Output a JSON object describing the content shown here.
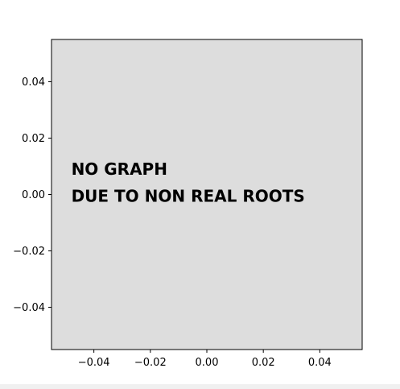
{
  "chart_data": {
    "type": "line",
    "title": "",
    "xlabel": "",
    "ylabel": "",
    "xlim": [
      -0.055,
      0.055
    ],
    "ylim": [
      -0.055,
      0.055
    ],
    "x_ticks": [
      -0.04,
      -0.02,
      0.0,
      0.02,
      0.04
    ],
    "y_ticks": [
      -0.04,
      -0.02,
      0.0,
      0.02,
      0.04
    ],
    "x_tick_labels": [
      "−0.04",
      "−0.02",
      "0.00",
      "0.02",
      "0.04"
    ],
    "y_tick_labels": [
      "−0.04",
      "−0.02",
      "0.00",
      "0.02",
      "0.04"
    ],
    "series": [],
    "grid": false,
    "background_color": "#dddddd",
    "annotation": {
      "lines": [
        "NO GRAPH",
        "DUE TO NON REAL ROOTS"
      ],
      "x": -0.048,
      "y_lines": [
        0.007,
        -0.0025
      ]
    }
  }
}
